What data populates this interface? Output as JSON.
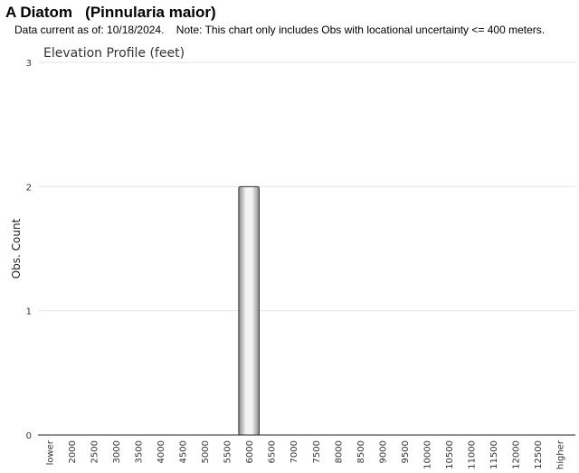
{
  "header": {
    "title": "A Diatom   (Pinnularia maior)",
    "subtitle": "Data current as of: 10/18/2024.    Note: This chart only includes Obs with locational uncertainty <= 400 meters."
  },
  "chart_data": {
    "type": "bar",
    "title": "Elevation Profile (feet)",
    "xlabel": "",
    "ylabel": "Obs. Count",
    "ylim": [
      0,
      3
    ],
    "yticks": [
      0,
      1,
      2,
      3
    ],
    "grid": true,
    "categories": [
      "lower",
      "2000",
      "2500",
      "3000",
      "3500",
      "4000",
      "4500",
      "5000",
      "5500",
      "6000",
      "6500",
      "7000",
      "7500",
      "8000",
      "8500",
      "9000",
      "9500",
      "10000",
      "10500",
      "11000",
      "11500",
      "12000",
      "12500",
      "higher"
    ],
    "values": [
      0,
      0,
      0,
      0,
      0,
      0,
      0,
      0,
      0,
      2,
      0,
      0,
      0,
      0,
      0,
      0,
      0,
      0,
      0,
      0,
      0,
      0,
      0,
      0
    ],
    "colors": {
      "bar_light": "#f4f4f4",
      "bar_dark": "#8a8a8a",
      "bar_stroke": "#333333",
      "grid": "#e3e3e3",
      "axis": "#222222"
    }
  }
}
